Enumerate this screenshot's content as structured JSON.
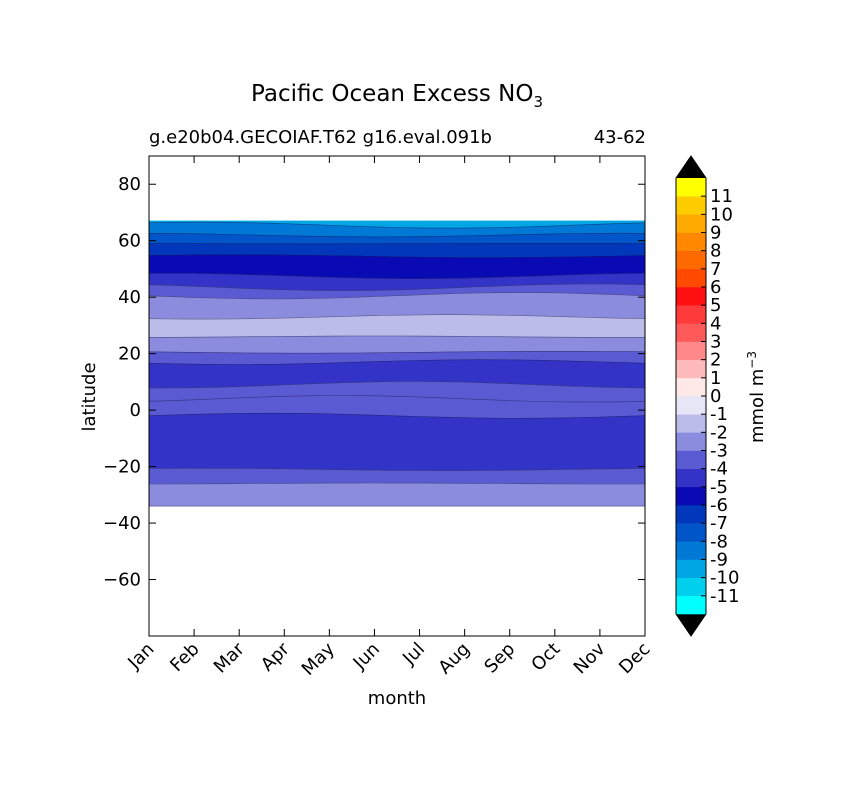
{
  "chart_data": {
    "type": "heatmap",
    "title": "Pacific Ocean Excess NO",
    "title_subscript": "3",
    "subtitle_left": "g.e20b04.GECOIAF.T62 g16.eval.091b",
    "subtitle_right": "43-62",
    "xlabel": "month",
    "ylabel": "latitude",
    "colorbar_label": "mmol m",
    "colorbar_label_exponent": "−3",
    "x_categories": [
      "Jan",
      "Feb",
      "Mar",
      "Apr",
      "May",
      "Jun",
      "Jul",
      "Aug",
      "Sep",
      "Oct",
      "Nov",
      "Dec"
    ],
    "ylim": [
      -80,
      90
    ],
    "yticks": [
      80,
      60,
      40,
      20,
      0,
      -20,
      -40,
      -60
    ],
    "ytick_labels": [
      "80",
      "60",
      "40",
      "20",
      "0",
      "−20",
      "−40",
      "−60"
    ],
    "data_lat_range": [
      -34,
      67
    ],
    "grid": false,
    "levels": [
      -12,
      -11,
      -10,
      -9,
      -8,
      -7,
      -6,
      -5,
      -4,
      -3,
      -2,
      -1,
      0,
      1,
      2,
      3,
      4,
      5,
      6,
      7,
      8,
      9,
      10,
      11,
      12
    ],
    "level_labels": [
      "11",
      "10",
      "9",
      "8",
      "7",
      "6",
      "5",
      "4",
      "3",
      "2",
      "1",
      "0",
      "-1",
      "-2",
      "-3",
      "-4",
      "-5",
      "-6",
      "-7",
      "-8",
      "-9",
      "-10",
      "-11"
    ],
    "colors": [
      "#00ffff",
      "#00d0ee",
      "#00a6e3",
      "#0078d6",
      "#0055c8",
      "#0037bb",
      "#0a0ab4",
      "#3333c7",
      "#5a5ad2",
      "#8c8cde",
      "#bcbceb",
      "#e6e6f7",
      "#ffe8e8",
      "#ffbbbb",
      "#ff8888",
      "#ff5a5a",
      "#ff3a3a",
      "#ff1010",
      "#ff4a00",
      "#ff6a00",
      "#ff8800",
      "#ffaa00",
      "#ffcc00",
      "#ffff00"
    ],
    "extend_colors": {
      "min": "#000000",
      "max": "#000000"
    },
    "bands": [
      {
        "lat_min": 65.5,
        "lat_max": 67,
        "value": -9.5
      },
      {
        "lat_min": 62,
        "lat_max": 65.5,
        "value": -8.5
      },
      {
        "lat_min": 59,
        "lat_max": 62,
        "value": -7.5
      },
      {
        "lat_min": 54.5,
        "lat_max": 59,
        "value": -6.5
      },
      {
        "lat_min": 47.5,
        "lat_max": 54.5,
        "value": -5.5
      },
      {
        "lat_min": 43.5,
        "lat_max": 47.5,
        "value": -4.5
      },
      {
        "lat_min": 40.5,
        "lat_max": 43.5,
        "value": -3.5
      },
      {
        "lat_min": 33,
        "lat_max": 40.5,
        "value": -2.5
      },
      {
        "lat_min": 26,
        "lat_max": 33,
        "value": -1.5
      },
      {
        "lat_min": 20.5,
        "lat_max": 26,
        "value": -2.5
      },
      {
        "lat_min": 17,
        "lat_max": 20.5,
        "value": -3.5
      },
      {
        "lat_min": 9,
        "lat_max": 17,
        "value": -4.5
      },
      {
        "lat_min": 4,
        "lat_max": 9,
        "value": -3.5
      },
      {
        "lat_min": -2,
        "lat_max": 4,
        "value": -3.5
      },
      {
        "lat_min": -21,
        "lat_max": -2,
        "value": -4.5
      },
      {
        "lat_min": -26,
        "lat_max": -21,
        "value": -3.5
      },
      {
        "lat_min": -34,
        "lat_max": -26,
        "value": -2.5
      }
    ]
  }
}
